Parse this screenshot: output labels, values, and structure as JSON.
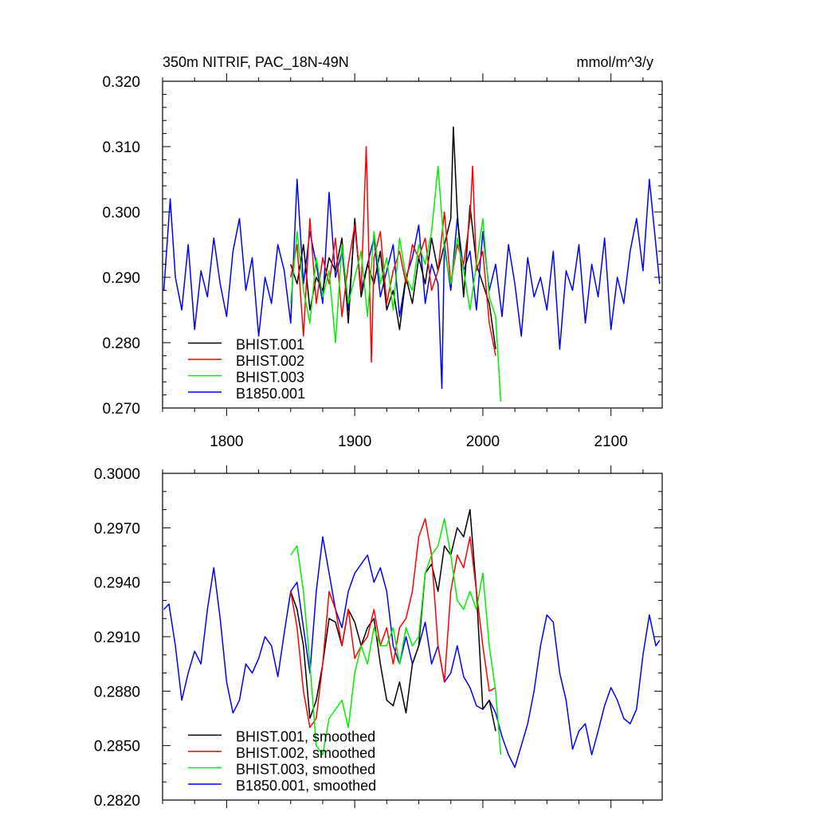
{
  "figure": {
    "title": "350m NITRIF, PAC_18N-49N",
    "units": "mmol/m^3/y"
  },
  "colors": {
    "BHIST.001": "#000000",
    "BHIST.002": "#ff0000",
    "BHIST.003": "#00ee00",
    "B1850.001": "#0000ff"
  },
  "chart_data": [
    {
      "type": "line",
      "panel": "top",
      "title": "350m NITRIF, PAC_18N-49N",
      "units_label": "mmol/m^3/y",
      "xlim": [
        1750,
        2140
      ],
      "ylim": [
        0.27,
        0.32
      ],
      "x_ticks": [
        1800,
        1900,
        2000,
        2100
      ],
      "x_tick_labels": [
        "1800",
        "1900",
        "2000",
        "2100"
      ],
      "y_ticks": [
        0.27,
        0.28,
        0.29,
        0.3,
        0.31,
        0.32
      ],
      "y_tick_labels": [
        "0.270",
        "0.280",
        "0.290",
        "0.300",
        "0.310",
        "0.320"
      ],
      "legend_position": "bottom-left",
      "series": [
        {
          "name": "BHIST.001",
          "x": [
            1850,
            1855,
            1860,
            1865,
            1870,
            1875,
            1880,
            1885,
            1890,
            1895,
            1900,
            1905,
            1910,
            1915,
            1920,
            1925,
            1930,
            1935,
            1940,
            1945,
            1950,
            1955,
            1960,
            1965,
            1970,
            1975,
            1977,
            1980,
            1985,
            1990,
            1995,
            2000,
            2005,
            2010
          ],
          "values": [
            0.292,
            0.289,
            0.295,
            0.285,
            0.29,
            0.288,
            0.293,
            0.291,
            0.296,
            0.283,
            0.299,
            0.287,
            0.292,
            0.289,
            0.294,
            0.285,
            0.288,
            0.282,
            0.29,
            0.286,
            0.293,
            0.289,
            0.296,
            0.291,
            0.295,
            0.299,
            0.313,
            0.3,
            0.287,
            0.301,
            0.292,
            0.289,
            0.286,
            0.279
          ]
        },
        {
          "name": "BHIST.002",
          "x": [
            1850,
            1855,
            1860,
            1865,
            1870,
            1875,
            1880,
            1885,
            1890,
            1895,
            1900,
            1905,
            1909,
            1913,
            1915,
            1920,
            1925,
            1930,
            1935,
            1940,
            1945,
            1950,
            1955,
            1960,
            1965,
            1970,
            1975,
            1980,
            1985,
            1990,
            1992,
            1995,
            2000,
            2005,
            2010
          ],
          "values": [
            0.29,
            0.295,
            0.281,
            0.299,
            0.286,
            0.293,
            0.289,
            0.296,
            0.284,
            0.292,
            0.298,
            0.288,
            0.31,
            0.277,
            0.293,
            0.297,
            0.286,
            0.291,
            0.294,
            0.289,
            0.295,
            0.293,
            0.296,
            0.288,
            0.291,
            0.3,
            0.289,
            0.295,
            0.292,
            0.299,
            0.307,
            0.291,
            0.294,
            0.283,
            0.278
          ]
        },
        {
          "name": "BHIST.003",
          "x": [
            1850,
            1855,
            1860,
            1865,
            1870,
            1875,
            1880,
            1885,
            1890,
            1895,
            1900,
            1905,
            1910,
            1915,
            1920,
            1925,
            1930,
            1935,
            1940,
            1945,
            1950,
            1955,
            1960,
            1965,
            1970,
            1975,
            1980,
            1985,
            1990,
            1995,
            2000,
            2005,
            2010,
            2014
          ],
          "values": [
            0.286,
            0.297,
            0.288,
            0.283,
            0.293,
            0.287,
            0.291,
            0.28,
            0.295,
            0.286,
            0.29,
            0.294,
            0.284,
            0.297,
            0.289,
            0.293,
            0.285,
            0.296,
            0.29,
            0.288,
            0.295,
            0.292,
            0.297,
            0.307,
            0.294,
            0.289,
            0.296,
            0.291,
            0.285,
            0.292,
            0.299,
            0.287,
            0.284,
            0.271
          ]
        },
        {
          "name": "B1850.001",
          "x": [
            1751,
            1756,
            1760,
            1765,
            1770,
            1775,
            1780,
            1785,
            1790,
            1795,
            1800,
            1805,
            1810,
            1815,
            1820,
            1825,
            1830,
            1835,
            1840,
            1845,
            1850,
            1855,
            1860,
            1865,
            1870,
            1875,
            1880,
            1885,
            1890,
            1895,
            1900,
            1905,
            1910,
            1915,
            1920,
            1925,
            1930,
            1935,
            1940,
            1945,
            1950,
            1955,
            1960,
            1965,
            1968,
            1970,
            1975,
            1980,
            1985,
            1990,
            1995,
            2000,
            2005,
            2010,
            2015,
            2020,
            2025,
            2030,
            2035,
            2040,
            2045,
            2050,
            2055,
            2060,
            2065,
            2070,
            2075,
            2080,
            2085,
            2090,
            2095,
            2100,
            2105,
            2110,
            2115,
            2120,
            2125,
            2130,
            2135,
            2138
          ],
          "values": [
            0.288,
            0.302,
            0.29,
            0.285,
            0.295,
            0.282,
            0.291,
            0.287,
            0.296,
            0.289,
            0.284,
            0.294,
            0.299,
            0.288,
            0.293,
            0.281,
            0.29,
            0.286,
            0.295,
            0.291,
            0.283,
            0.305,
            0.289,
            0.297,
            0.292,
            0.286,
            0.303,
            0.29,
            0.294,
            0.285,
            0.298,
            0.288,
            0.292,
            0.296,
            0.287,
            0.291,
            0.295,
            0.284,
            0.29,
            0.293,
            0.298,
            0.286,
            0.292,
            0.289,
            0.273,
            0.295,
            0.288,
            0.299,
            0.291,
            0.294,
            0.285,
            0.297,
            0.288,
            0.292,
            0.284,
            0.295,
            0.289,
            0.281,
            0.293,
            0.287,
            0.29,
            0.285,
            0.294,
            0.279,
            0.291,
            0.288,
            0.295,
            0.283,
            0.292,
            0.287,
            0.296,
            0.282,
            0.29,
            0.286,
            0.294,
            0.299,
            0.291,
            0.305,
            0.295,
            0.289
          ]
        }
      ]
    },
    {
      "type": "line",
      "panel": "bottom",
      "xlim": [
        1750,
        2140
      ],
      "ylim": [
        0.282,
        0.3
      ],
      "x_ticks": [
        1800,
        1900,
        2000,
        2100
      ],
      "y_ticks": [
        0.282,
        0.285,
        0.288,
        0.291,
        0.294,
        0.297,
        0.3
      ],
      "y_tick_labels": [
        "0.2820",
        "0.2850",
        "0.2880",
        "0.2910",
        "0.2940",
        "0.2970",
        "0.3000"
      ],
      "legend_position": "bottom-left",
      "series": [
        {
          "name": "BHIST.001, smoothed",
          "x": [
            1850,
            1855,
            1860,
            1865,
            1870,
            1875,
            1880,
            1885,
            1890,
            1895,
            1900,
            1905,
            1910,
            1915,
            1920,
            1925,
            1930,
            1935,
            1940,
            1945,
            1950,
            1955,
            1960,
            1965,
            1970,
            1975,
            1980,
            1985,
            1990,
            1995,
            2000,
            2005,
            2010
          ],
          "values": [
            0.2935,
            0.2925,
            0.2905,
            0.2865,
            0.2875,
            0.2895,
            0.292,
            0.2918,
            0.2905,
            0.2925,
            0.2918,
            0.2905,
            0.2915,
            0.292,
            0.2895,
            0.2875,
            0.2872,
            0.2885,
            0.2868,
            0.2895,
            0.2905,
            0.2945,
            0.295,
            0.2935,
            0.296,
            0.2955,
            0.297,
            0.2965,
            0.298,
            0.2935,
            0.287,
            0.2875,
            0.2858
          ]
        },
        {
          "name": "BHIST.002, smoothed",
          "x": [
            1850,
            1855,
            1860,
            1865,
            1870,
            1875,
            1880,
            1885,
            1890,
            1895,
            1900,
            1905,
            1910,
            1915,
            1920,
            1925,
            1930,
            1935,
            1940,
            1945,
            1950,
            1955,
            1960,
            1965,
            1970,
            1975,
            1980,
            1985,
            1990,
            1995,
            2000,
            2005,
            2010
          ],
          "values": [
            0.2935,
            0.2915,
            0.288,
            0.286,
            0.2865,
            0.2895,
            0.2935,
            0.2925,
            0.2905,
            0.2925,
            0.2898,
            0.2905,
            0.291,
            0.2925,
            0.2905,
            0.2915,
            0.2895,
            0.2915,
            0.292,
            0.2935,
            0.2965,
            0.2975,
            0.2955,
            0.2905,
            0.2885,
            0.2935,
            0.2955,
            0.2948,
            0.2965,
            0.2935,
            0.2905,
            0.288,
            0.2882
          ]
        },
        {
          "name": "BHIST.003, smoothed",
          "x": [
            1850,
            1855,
            1860,
            1865,
            1870,
            1875,
            1880,
            1885,
            1890,
            1895,
            1900,
            1905,
            1910,
            1915,
            1920,
            1925,
            1930,
            1935,
            1940,
            1945,
            1950,
            1955,
            1960,
            1965,
            1970,
            1975,
            1980,
            1985,
            1990,
            1995,
            2000,
            2005,
            2010,
            2014
          ],
          "values": [
            0.2955,
            0.296,
            0.2935,
            0.2895,
            0.285,
            0.2845,
            0.2865,
            0.287,
            0.2875,
            0.286,
            0.289,
            0.2905,
            0.2895,
            0.2915,
            0.2905,
            0.2905,
            0.2915,
            0.2895,
            0.2915,
            0.2905,
            0.291,
            0.2945,
            0.2955,
            0.296,
            0.2975,
            0.2955,
            0.293,
            0.2925,
            0.2935,
            0.2925,
            0.2945,
            0.2905,
            0.288,
            0.2845
          ]
        },
        {
          "name": "B1850.001, smoothed",
          "x": [
            1751,
            1755,
            1760,
            1765,
            1770,
            1775,
            1780,
            1785,
            1790,
            1795,
            1800,
            1805,
            1810,
            1815,
            1820,
            1825,
            1830,
            1835,
            1840,
            1845,
            1850,
            1855,
            1860,
            1865,
            1870,
            1875,
            1880,
            1885,
            1890,
            1895,
            1900,
            1905,
            1910,
            1915,
            1920,
            1925,
            1930,
            1935,
            1940,
            1945,
            1950,
            1955,
            1960,
            1965,
            1970,
            1975,
            1980,
            1985,
            1990,
            1995,
            2000,
            2005,
            2010,
            2015,
            2020,
            2025,
            2030,
            2035,
            2040,
            2045,
            2050,
            2055,
            2060,
            2065,
            2070,
            2075,
            2080,
            2085,
            2090,
            2095,
            2100,
            2105,
            2110,
            2115,
            2120,
            2125,
            2130,
            2135,
            2138
          ],
          "values": [
            0.2925,
            0.2928,
            0.2905,
            0.2875,
            0.289,
            0.2902,
            0.2895,
            0.2925,
            0.2948,
            0.292,
            0.2885,
            0.2868,
            0.2875,
            0.2895,
            0.289,
            0.2898,
            0.291,
            0.2905,
            0.2888,
            0.2912,
            0.2935,
            0.294,
            0.2915,
            0.289,
            0.2935,
            0.2965,
            0.2945,
            0.2925,
            0.2915,
            0.2935,
            0.2945,
            0.295,
            0.2955,
            0.294,
            0.2948,
            0.2935,
            0.2905,
            0.2895,
            0.291,
            0.2895,
            0.2905,
            0.2918,
            0.2895,
            0.2905,
            0.2885,
            0.289,
            0.2905,
            0.2888,
            0.2882,
            0.2872,
            0.287,
            0.2875,
            0.2868,
            0.2855,
            0.2845,
            0.2838,
            0.285,
            0.2862,
            0.288,
            0.2905,
            0.2922,
            0.2918,
            0.289,
            0.2875,
            0.2848,
            0.2858,
            0.2862,
            0.2845,
            0.2858,
            0.2872,
            0.2882,
            0.2875,
            0.2865,
            0.2862,
            0.287,
            0.29,
            0.2922,
            0.2905,
            0.2908
          ]
        }
      ]
    }
  ]
}
